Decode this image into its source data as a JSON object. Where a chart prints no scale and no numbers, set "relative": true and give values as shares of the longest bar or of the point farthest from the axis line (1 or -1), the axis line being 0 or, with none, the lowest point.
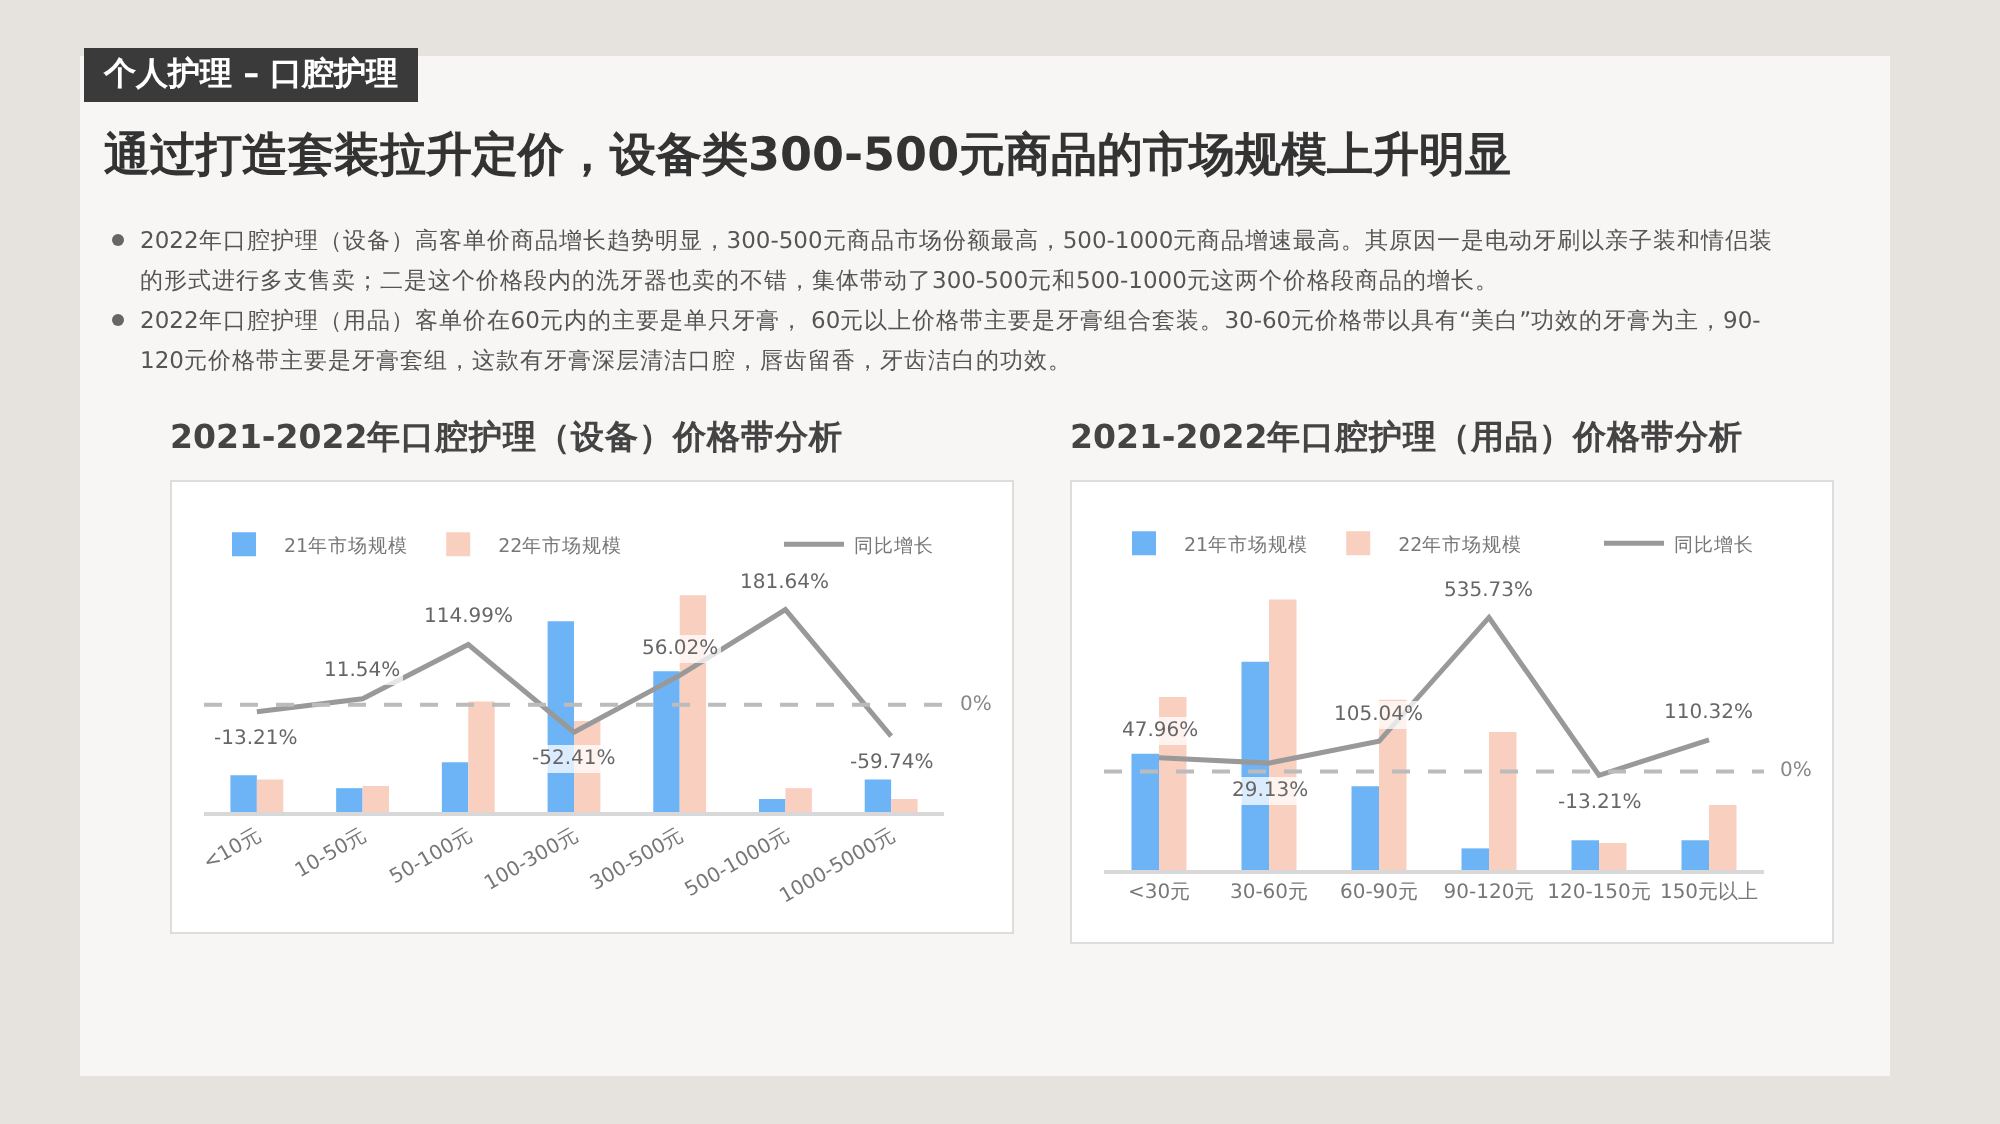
{
  "chart_data": [
    {
      "type": "other",
      "subtitle": "个人护理 – 口腔护理",
      "title": "通过打造套装拉升定价，设备类300-500元商品的市场规模上升明显",
      "annotations": [
        "2022年口腔护理（设备）高客单价商品增长趋势明显，300-500元商品市场份额最高，500-1000元商品增速最高。其原因一是电动牙刷以亲子装和情侣装的形式进行多支售卖；二是这个价格段内的洗牙器也卖的不错，集体带动了300-500元和500-1000元这两个价格段商品的增长。",
        "2022年口腔护理（用品）客单价在60元内的主要是单只牙膏， 60元以上价格带主要是牙膏组合套装。30-60元价格带以具有“美白”功效的牙膏为主，90-120元价格带主要是牙膏套组，这款有牙膏深层清洁口腔，唇齿留香，牙齿洁白的功效。"
      ]
    },
    {
      "type": "bar",
      "title": "2021-2022年口腔护理（设备）价格带分析",
      "relative": true,
      "legend": "top left",
      "categories": [
        "<10元",
        "10-50元",
        "50-100元",
        "100-300元",
        "300-500元",
        "500-1000元",
        "1000-5000元"
      ],
      "series": [
        {
          "name": "21年市场规模",
          "color": "#6cb4f5",
          "values": [
            0.17,
            0.11,
            0.23,
            0.88,
            0.65,
            0.06,
            0.15
          ]
        },
        {
          "name": "22年市场规模",
          "color": "#f9cfc0",
          "values": [
            0.15,
            0.12,
            0.51,
            0.42,
            1,
            0.11,
            0.06
          ]
        }
      ]
    },
    {
      "type": "line",
      "legend": "top right",
      "categories": [
        null,
        null,
        null,
        null,
        null,
        null,
        null
      ],
      "series": [
        {
          "name": "同比增长",
          "color": "#999999",
          "values": [
            -13.21,
            11.54,
            114.99,
            -52.41,
            56.02,
            181.64,
            -59.74
          ],
          "value_labels": [
            "-13.21%",
            "11.54%",
            "114.99%",
            "-52.41%",
            "56.02%",
            "181.64%",
            "-59.74%"
          ]
        }
      ],
      "ref_lines": [
        {
          "axis": "y",
          "value": 0,
          "label": "0%",
          "line_style": "dashed",
          "color": "#bbbbbb"
        }
      ]
    },
    {
      "type": "bar",
      "title": "2021-2022年口腔护理（用品）价格带分析",
      "relative": true,
      "legend": "top left",
      "categories": [
        "<30元",
        "30-60元",
        "60-90元",
        "90-120元",
        "120-150元",
        "150元以上"
      ],
      "series": [
        {
          "name": "21年市场规模",
          "color": "#6cb4f5",
          "values": [
            0.43,
            0.77,
            0.31,
            0.08,
            0.11,
            0.11
          ]
        },
        {
          "name": "22年市场规模",
          "color": "#f9cfc0",
          "values": [
            0.64,
            1,
            0.63,
            0.51,
            0.1,
            0.24
          ]
        }
      ]
    },
    {
      "type": "line",
      "legend": "top right",
      "categories": [
        null,
        null,
        null,
        null,
        null,
        null
      ],
      "series": [
        {
          "name": "同比增长",
          "color": "#999999",
          "values": [
            47.96,
            29.13,
            105.04,
            535.73,
            -13.21,
            110.32
          ],
          "value_labels": [
            "47.96%",
            "29.13%",
            "105.04%",
            "535.73%",
            "-13.21%",
            "110.32%"
          ]
        }
      ],
      "ref_lines": [
        {
          "axis": "y",
          "value": 0,
          "label": "0%",
          "line_style": "dashed",
          "color": "#bbbbbb"
        }
      ]
    }
  ]
}
